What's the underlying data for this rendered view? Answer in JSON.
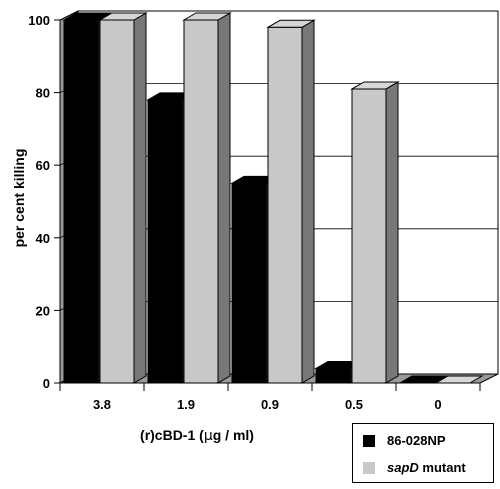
{
  "chart_data": {
    "type": "bar",
    "categories": [
      "3.8",
      "1.9",
      "0.9",
      "0.5",
      "0"
    ],
    "series": [
      {
        "name": "86-028NP",
        "values": [
          100,
          78,
          55,
          4,
          0
        ],
        "color": "#000000"
      },
      {
        "name": "sapD mutant",
        "values": [
          100,
          100,
          98,
          81,
          0
        ],
        "color": "#c8c8c8"
      }
    ],
    "title": "",
    "xlabel": "(r)cBD-1 (µg / ml)",
    "ylabel": "per cent killing",
    "ylim": [
      0,
      100
    ],
    "yticks": [
      0,
      20,
      40,
      60,
      80,
      100
    ],
    "grid": true,
    "legend": "bottom-right",
    "bar_style": "3d"
  }
}
